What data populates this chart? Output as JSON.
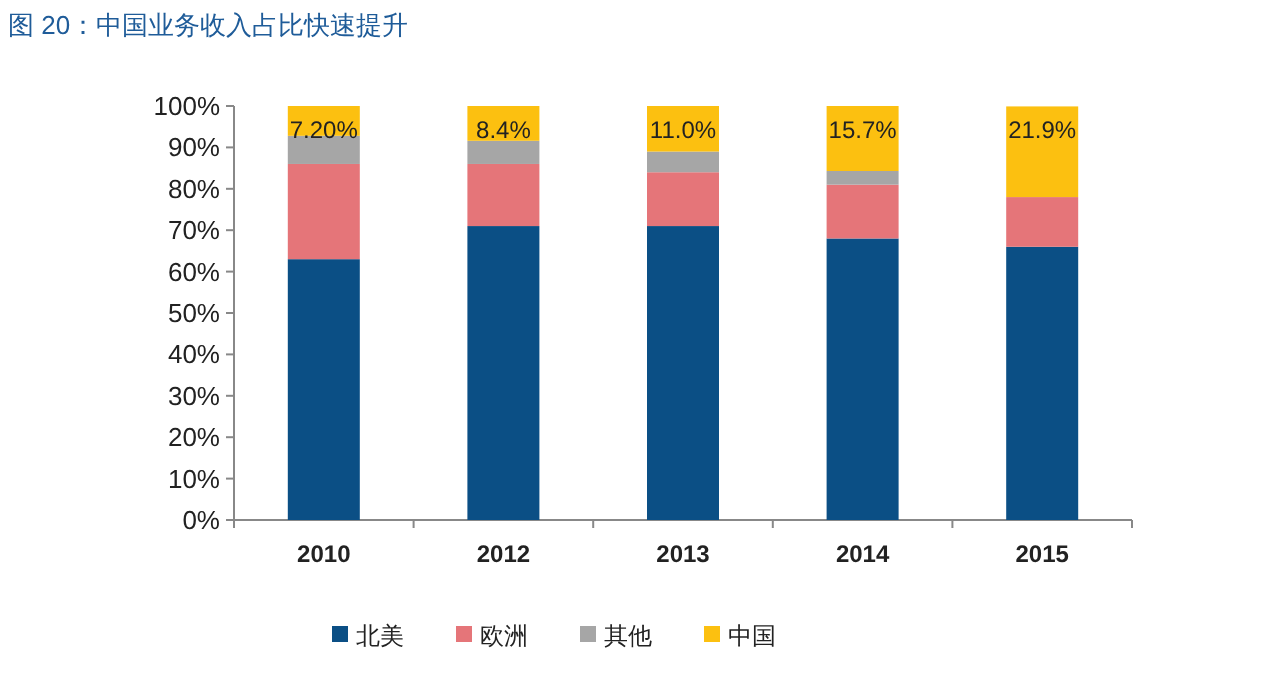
{
  "chart_data": {
    "type": "bar",
    "title": "图 20：中国业务收入占比快速提升",
    "stacked": true,
    "legend": "bottom",
    "categories": [
      "2010",
      "2012",
      "2013",
      "2014",
      "2015"
    ],
    "series": [
      {
        "name": "北美",
        "color": "#0b4f85",
        "values": [
          63,
          71,
          71,
          68,
          66
        ]
      },
      {
        "name": "欧洲",
        "color": "#e57579",
        "values": [
          23,
          15,
          13,
          13,
          12
        ]
      },
      {
        "name": "其他",
        "color": "#a6a6a6",
        "values": [
          6.8,
          5.6,
          5,
          3.3,
          null
        ]
      },
      {
        "name": "中国",
        "color": "#fcc010",
        "values": [
          7.2,
          8.4,
          11.0,
          15.7,
          21.9
        ],
        "value_labels": [
          "7.20%",
          "8.4%",
          "11.0%",
          "15.7%",
          "21.9%"
        ]
      }
    ],
    "ylim": [
      0,
      100
    ],
    "yticks": [
      {
        "value": 0,
        "label": "0%"
      },
      {
        "value": 10,
        "label": "10%"
      },
      {
        "value": 20,
        "label": "20%"
      },
      {
        "value": 30,
        "label": "30%"
      },
      {
        "value": 40,
        "label": "40%"
      },
      {
        "value": 50,
        "label": "50%"
      },
      {
        "value": 60,
        "label": "60%"
      },
      {
        "value": 70,
        "label": "70%"
      },
      {
        "value": 80,
        "label": "80%"
      },
      {
        "value": 90,
        "label": "90%"
      },
      {
        "value": 100,
        "label": "100%"
      }
    ]
  }
}
